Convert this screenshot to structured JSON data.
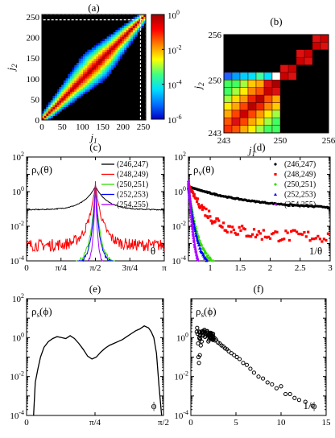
{
  "chart_data": [
    {
      "panel_label": "(a)",
      "type": "heatmap",
      "xlabel": "j1",
      "ylabel": "j2",
      "xlim": [
        0,
        256
      ],
      "ylim": [
        0,
        256
      ],
      "xticks": [
        "0",
        "50",
        "100",
        "150",
        "200",
        "250"
      ],
      "yticks": [
        "0",
        "50",
        "100",
        "150",
        "200",
        "250"
      ],
      "colorbar": {
        "scale": "log",
        "range": [
          1e-06,
          1.0
        ],
        "ticks": [
          {
            "base": "10",
            "exp": "0"
          },
          {
            "base": "10",
            "exp": "-2"
          },
          {
            "base": "10",
            "exp": "-4"
          },
          {
            "base": "10",
            "exp": "-6"
          }
        ],
        "colors": [
          "#0000c8",
          "#0070ff",
          "#00e0ff",
          "#40ff80",
          "#ffff00",
          "#ff8000",
          "#ff0000",
          "#a00000"
        ]
      },
      "description_values": {
        "band": "diagonal band j1≈j2 widening toward middle"
      },
      "inset_box": {
        "from": 243,
        "to": 256
      }
    },
    {
      "panel_label": "(b)",
      "type": "heatmap",
      "xlabel": "j1",
      "ylabel": "j2",
      "xlim": [
        243,
        256
      ],
      "ylim": [
        243,
        256
      ],
      "xticks": [
        "243",
        "250",
        "256"
      ],
      "yticks": [
        "243",
        "250",
        "256"
      ],
      "cells": [
        [
          243,
          243,
          "#ff3000"
        ],
        [
          243,
          244,
          "#ff5500"
        ],
        [
          243,
          245,
          "#ffaa00"
        ],
        [
          243,
          246,
          "#ffee00"
        ],
        [
          243,
          247,
          "#a0ff40"
        ],
        [
          243,
          248,
          "#40ff60"
        ],
        [
          243,
          249,
          "#40ff60"
        ],
        [
          244,
          243,
          "#ff5500"
        ],
        [
          244,
          244,
          "#dd1010"
        ],
        [
          244,
          245,
          "#ff4400"
        ],
        [
          244,
          246,
          "#ffaa00"
        ],
        [
          244,
          247,
          "#ffdd00"
        ],
        [
          244,
          248,
          "#a0ff40"
        ],
        [
          244,
          249,
          "#40ff60"
        ],
        [
          245,
          243,
          "#ffaa00"
        ],
        [
          245,
          244,
          "#ff4400"
        ],
        [
          245,
          245,
          "#cc0000"
        ],
        [
          245,
          246,
          "#ff4400"
        ],
        [
          245,
          247,
          "#ff9900"
        ],
        [
          245,
          248,
          "#ffee00"
        ],
        [
          245,
          249,
          "#a0ff40"
        ],
        [
          246,
          243,
          "#ffee00"
        ],
        [
          246,
          244,
          "#ffaa00"
        ],
        [
          246,
          245,
          "#ff4400"
        ],
        [
          246,
          246,
          "#bb0000"
        ],
        [
          246,
          247,
          "#ee2200"
        ],
        [
          246,
          248,
          "#ff8800"
        ],
        [
          246,
          249,
          "#ffcc00"
        ],
        [
          247,
          243,
          "#a0ff40"
        ],
        [
          247,
          244,
          "#ffdd00"
        ],
        [
          247,
          245,
          "#ff9900"
        ],
        [
          247,
          246,
          "#ee2200"
        ],
        [
          247,
          247,
          "#bb0000"
        ],
        [
          247,
          248,
          "#ff5500"
        ],
        [
          247,
          249,
          "#ffaa00"
        ],
        [
          248,
          243,
          "#40ff60"
        ],
        [
          248,
          244,
          "#a0ff40"
        ],
        [
          248,
          245,
          "#ffee00"
        ],
        [
          248,
          246,
          "#ff8800"
        ],
        [
          248,
          247,
          "#ff5500"
        ],
        [
          248,
          248,
          "#cc0000"
        ],
        [
          248,
          249,
          "#dd1010"
        ],
        [
          249,
          243,
          "#40ff60"
        ],
        [
          249,
          244,
          "#40ff60"
        ],
        [
          249,
          245,
          "#a0ff40"
        ],
        [
          249,
          246,
          "#ffcc00"
        ],
        [
          249,
          247,
          "#ffaa00"
        ],
        [
          249,
          248,
          "#dd1010"
        ],
        [
          249,
          249,
          "#aa0000"
        ],
        [
          243,
          249,
          "#40ff60"
        ],
        [
          244,
          249,
          "#40ff60"
        ],
        [
          250,
          250,
          "#cc0000"
        ],
        [
          251,
          251,
          "#cc0000"
        ],
        [
          250,
          251,
          "#dd1010"
        ],
        [
          251,
          250,
          "#dd1010"
        ],
        [
          252,
          252,
          "#cc0000"
        ],
        [
          253,
          253,
          "#cc0000"
        ],
        [
          252,
          253,
          "#dd1010"
        ],
        [
          253,
          252,
          "#dd1010"
        ],
        [
          254,
          254,
          "#cc0000"
        ],
        [
          255,
          255,
          "#cc0000"
        ],
        [
          254,
          255,
          "#dd1010"
        ],
        [
          255,
          254,
          "#dd1010"
        ],
        [
          243,
          250,
          "#2060ff"
        ],
        [
          244,
          250,
          "#00a0ff"
        ],
        [
          245,
          250,
          "#00d0ff"
        ],
        [
          246,
          250,
          "#00e0ff"
        ],
        [
          247,
          250,
          "#40ffa0"
        ],
        [
          248,
          250,
          "#00e0ff"
        ],
        [
          249,
          250,
          "#ffffff"
        ]
      ]
    },
    {
      "panel_label": "(c)",
      "type": "line",
      "ylabel": "ρv(θ)",
      "xlabel": "θ",
      "yscale": "log",
      "ylim_exp": [
        -4,
        2
      ],
      "xlim": [
        0,
        3.14159
      ],
      "xticks": [
        {
          "v": 0,
          "label": "0"
        },
        {
          "v": 0.7854,
          "label": "π/4"
        },
        {
          "v": 1.5708,
          "label": "π/2"
        },
        {
          "v": 2.3562,
          "label": "3π/4"
        },
        {
          "v": 3.14159,
          "label": "π"
        }
      ],
      "yticks": [
        {
          "base": "10",
          "exp": "2"
        },
        {
          "base": "10",
          "exp": "0"
        },
        {
          "base": "10",
          "exp": "-2"
        },
        {
          "base": "10",
          "exp": "-4"
        }
      ],
      "legend_position": "top-right",
      "series": [
        {
          "name": "(246,247)",
          "color": "#000000",
          "kind": "line",
          "base_log": -1.05,
          "peak_log": 0.3,
          "width": 0.28,
          "noise": 0.03,
          "floor_width": 3.2
        },
        {
          "name": "(248,249)",
          "color": "#ff0000",
          "kind": "line",
          "base_log": -3.1,
          "peak_log": 0.4,
          "width": 0.18,
          "noise": 0.35,
          "floor_width": 3.2
        },
        {
          "name": "(250,251)",
          "color": "#33dd00",
          "kind": "line",
          "base_log": -4.2,
          "peak_log": 0.3,
          "width": 0.12,
          "noise": 0.15,
          "floor_width": 0.9
        },
        {
          "name": "(252,253)",
          "color": "#0000ff",
          "kind": "line",
          "base_log": -4.2,
          "peak_log": 0.25,
          "width": 0.1,
          "noise": 0.12,
          "floor_width": 0.85
        },
        {
          "name": "(254,255)",
          "color": "#aa00ff",
          "kind": "line",
          "base_log": -4.2,
          "peak_log": 0.6,
          "width": 0.05,
          "noise": 0.1,
          "floor_width": 0.35
        }
      ]
    },
    {
      "panel_label": "(d)",
      "type": "scatter",
      "ylabel": "ρv(θ)",
      "xlabel": "1/θ",
      "yscale": "log",
      "ylim_exp": [
        -4,
        2
      ],
      "xlim": [
        0.6366,
        3
      ],
      "xticks": [
        {
          "v": 1,
          "label": "1"
        },
        {
          "v": 1.5,
          "label": "1.5"
        },
        {
          "v": 2,
          "label": "2"
        },
        {
          "v": 2.5,
          "label": "2.5"
        },
        {
          "v": 3,
          "label": "3"
        }
      ],
      "yticks": [
        {
          "base": "10",
          "exp": "2"
        },
        {
          "base": "10",
          "exp": "0"
        },
        {
          "base": "10",
          "exp": "-2"
        },
        {
          "base": "10",
          "exp": "-4"
        }
      ],
      "legend_position": "top-right",
      "series": [
        {
          "name": "(246,247)",
          "color": "#000000",
          "marker": "circle",
          "start_log": 0.3,
          "tail_log": -1.05,
          "decay": 6,
          "xmax": 3,
          "spread": 0.03
        },
        {
          "name": "(248,249)",
          "color": "#ff0000",
          "marker": "square",
          "start_log": 0.4,
          "tail_log": -2.6,
          "decay": 2.2,
          "xmax": 3,
          "spread": 0.35
        },
        {
          "name": "(250,251)",
          "color": "#33dd00",
          "marker": "diamond",
          "start_log": 0.3,
          "tail_log": -4.6,
          "decay": 1.0,
          "xmax": 1.75,
          "spread": 0.12
        },
        {
          "name": "(252,253)",
          "color": "#0000ff",
          "marker": "triangle",
          "start_log": 0.25,
          "tail_log": -4.8,
          "decay": 0.9,
          "xmax": 1.55,
          "spread": 0.12
        },
        {
          "name": "(254,255)",
          "color": "#aa00ff",
          "marker": "triangle-left",
          "start_log": 0.6,
          "tail_log": -5.2,
          "decay": 0.55,
          "xmax": 0.98,
          "spread": 0.12
        }
      ]
    },
    {
      "panel_label": "(e)",
      "type": "line",
      "ylabel": "ρs(ϕ)",
      "xlabel": "ϕ",
      "yscale": "log",
      "ylim_exp": [
        -4,
        2
      ],
      "xlim": [
        0,
        1.5708
      ],
      "xticks": [
        {
          "v": 0,
          "label": "0"
        },
        {
          "v": 0.7854,
          "label": "π/4"
        },
        {
          "v": 1.5708,
          "label": "π/2"
        }
      ],
      "yticks": [
        {
          "base": "10",
          "exp": "2"
        },
        {
          "base": "10",
          "exp": "0"
        },
        {
          "base": "10",
          "exp": "-2"
        },
        {
          "base": "10",
          "exp": "-4"
        }
      ],
      "series": [
        {
          "color": "#000000",
          "x": [
            0.08,
            0.1,
            0.13,
            0.16,
            0.2,
            0.25,
            0.3,
            0.35,
            0.4,
            0.45,
            0.5,
            0.55,
            0.6,
            0.65,
            0.7,
            0.75,
            0.8,
            0.85,
            0.9,
            0.95,
            1.0,
            1.05,
            1.1,
            1.15,
            1.2,
            1.25,
            1.3,
            1.35,
            1.4,
            1.43,
            1.46,
            1.49,
            1.52,
            1.55
          ],
          "log": [
            -4,
            -2.3,
            -1.6,
            -1.0,
            -0.5,
            -0.2,
            -0.05,
            0.05,
            0.0,
            -0.05,
            0.1,
            -0.05,
            -0.3,
            -0.6,
            -0.95,
            -1.1,
            -1.0,
            -0.75,
            -0.55,
            -0.4,
            -0.3,
            -0.2,
            -0.1,
            0.05,
            0.2,
            0.35,
            0.45,
            0.6,
            0.5,
            0.3,
            0.0,
            -0.8,
            -2.5,
            -4
          ]
        }
      ]
    },
    {
      "panel_label": "(f)",
      "type": "scatter",
      "ylabel": "ρs(ϕ)",
      "xlabel": "1/ϕ",
      "yscale": "log",
      "ylim_exp": [
        -4,
        2
      ],
      "xlim": [
        0,
        15
      ],
      "xticks": [
        {
          "v": 0,
          "label": "0"
        },
        {
          "v": 5,
          "label": "5"
        },
        {
          "v": 10,
          "label": "10"
        },
        {
          "v": 15,
          "label": "15"
        }
      ],
      "yticks": [
        {
          "base": "10",
          "exp": "0"
        },
        {
          "base": "10",
          "exp": "-2"
        },
        {
          "base": "10",
          "exp": "-4"
        }
      ],
      "series": [
        {
          "color": "#000000",
          "marker": "circle-open",
          "x": [
            0.65,
            0.7,
            0.75,
            0.8,
            0.85,
            0.9,
            1.0,
            1.1,
            1.2,
            1.3,
            1.4,
            1.5,
            1.6,
            1.7,
            1.8,
            1.9,
            2.0,
            2.1,
            2.2,
            2.3,
            2.4,
            2.5,
            2.6,
            2.7,
            2.8,
            3.0,
            3.2,
            3.4,
            3.6,
            3.8,
            4.0,
            4.2,
            4.5,
            4.8,
            5.1,
            5.4,
            5.8,
            6.2,
            6.6,
            7.0,
            7.5,
            8.0,
            8.5,
            9.0,
            9.5,
            10.0,
            10.5,
            11.0,
            11.5,
            12.0,
            12.7,
            13.5
          ],
          "log": [
            0.3,
            0.5,
            0.2,
            -0.3,
            -1.0,
            -1.3,
            -0.9,
            -0.4,
            -0.2,
            0.1,
            0.3,
            0.4,
            0.35,
            0.2,
            0.25,
            0.1,
            0.15,
            0.0,
            0.1,
            -0.05,
            0.05,
            -0.1,
            0.0,
            -0.15,
            -0.1,
            -0.25,
            -0.3,
            -0.4,
            -0.45,
            -0.55,
            -0.6,
            -0.7,
            -0.8,
            -0.9,
            -1.0,
            -1.1,
            -1.3,
            -1.4,
            -1.6,
            -1.8,
            -2.0,
            -2.1,
            -2.3,
            -2.4,
            -2.6,
            -2.5,
            -2.9,
            -2.9,
            -3.1,
            -3.2,
            -3.3,
            -3.5
          ]
        }
      ]
    }
  ]
}
